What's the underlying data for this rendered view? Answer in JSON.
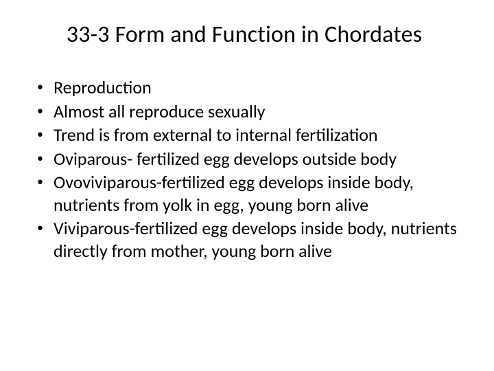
{
  "slide": {
    "title": "33-3 Form and Function in Chordates",
    "bullets": [
      "Reproduction",
      "Almost all reproduce sexually",
      "Trend is from external to internal fertilization",
      "Oviparous- fertilized egg develops outside body",
      "Ovoviviparous-fertilized egg develops inside body, nutrients from yolk in egg, young born alive",
      "Viviparous-fertilized egg develops inside body, nutrients directly from mother, young born alive"
    ]
  },
  "style": {
    "background_color": "#ffffff",
    "text_color": "#000000",
    "title_fontsize": 34,
    "bullet_fontsize": 26,
    "font_family": "Calibri"
  }
}
